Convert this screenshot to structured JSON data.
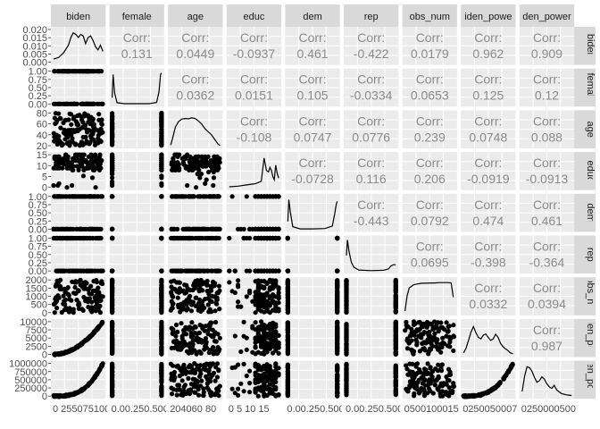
{
  "chart_data": {
    "type": "scatter-matrix",
    "variables": [
      "biden",
      "female",
      "age",
      "educ",
      "dem",
      "rep",
      "obs_num",
      "biden_power",
      "biden_power"
    ],
    "strip_labels": {
      "top": [
        "biden",
        "female",
        "age",
        "educ",
        "dem",
        "rep",
        "obs_num",
        "iden_powe",
        "den_power"
      ],
      "right": [
        "biden",
        "female",
        "age",
        "educ",
        "dem",
        "rep",
        "obs_nun",
        "den_pow",
        "en_pow"
      ]
    },
    "corr_label": "Corr:",
    "correlations": [
      [
        null,
        "0.131",
        "0.0449",
        "-0.0937",
        "0.461",
        "-0.422",
        "0.0179",
        "0.962",
        "0.909"
      ],
      [
        null,
        null,
        "0.0362",
        "0.0151",
        "0.105",
        "-0.0334",
        "0.0653",
        "0.125",
        "0.12"
      ],
      [
        null,
        null,
        null,
        "-0.108",
        "0.0747",
        "0.0776",
        "0.239",
        "0.0748",
        "0.088"
      ],
      [
        null,
        null,
        null,
        null,
        "-0.0728",
        "0.116",
        "0.206",
        "-0.0919",
        "-0.0913"
      ],
      [
        null,
        null,
        null,
        null,
        null,
        "-0.443",
        "0.0792",
        "0.474",
        "0.461"
      ],
      [
        null,
        null,
        null,
        null,
        null,
        null,
        "0.0695",
        "-0.398",
        "-0.364"
      ],
      [
        null,
        null,
        null,
        null,
        null,
        null,
        null,
        "0.0332",
        "0.0394"
      ],
      [
        null,
        null,
        null,
        null,
        null,
        null,
        null,
        null,
        "0.987"
      ],
      [
        null,
        null,
        null,
        null,
        null,
        null,
        null,
        null,
        null
      ]
    ],
    "y_tick_labels": [
      [
        "0.000",
        "0.005",
        "0.010",
        "0.015",
        "0.020"
      ],
      [
        "0.00",
        "0.25",
        "0.50",
        "0.75",
        "1.00"
      ],
      [
        "20",
        "40",
        "60",
        "80"
      ],
      [
        "0",
        "5",
        "10",
        "15"
      ],
      [
        "0.00",
        "0.25",
        "0.50",
        "0.75",
        "1.00"
      ],
      [
        "0.00",
        "0.25",
        "0.50",
        "0.75",
        "1.00"
      ],
      [
        "0",
        "500",
        "1000",
        "1500",
        "2000"
      ],
      [
        "0",
        "2500",
        "5000",
        "7500",
        "10000"
      ],
      [
        "0",
        "250000",
        "500000",
        "750000",
        "1000000"
      ]
    ],
    "x_tick_labels": [
      "0 255075100",
      "0.00.250.500.751.00",
      "204060 80",
      "0 5 10 15",
      "0.00.250.500.751.00",
      "0.00.250.500.751.00",
      "050010001500 2000",
      "02500500075001000",
      "0250000500000750000 1000000"
    ],
    "ranges": [
      [
        0,
        100
      ],
      [
        0,
        1
      ],
      [
        18,
        93
      ],
      [
        0,
        17
      ],
      [
        0,
        1
      ],
      [
        0,
        1
      ],
      [
        0,
        2300
      ],
      [
        0,
        10000
      ],
      [
        0,
        1000000
      ]
    ],
    "density_curves": [
      [
        [
          0,
          0.002
        ],
        [
          10,
          0.003
        ],
        [
          20,
          0.006
        ],
        [
          30,
          0.011
        ],
        [
          35,
          0.016
        ],
        [
          40,
          0.019
        ],
        [
          45,
          0.018
        ],
        [
          50,
          0.016
        ],
        [
          55,
          0.018
        ],
        [
          60,
          0.017
        ],
        [
          65,
          0.012
        ],
        [
          70,
          0.016
        ],
        [
          75,
          0.017
        ],
        [
          80,
          0.014
        ],
        [
          85,
          0.01
        ],
        [
          90,
          0.008
        ],
        [
          95,
          0.011
        ],
        [
          100,
          0.007
        ]
      ],
      [
        [
          0,
          0.2
        ],
        [
          0.02,
          0.95
        ],
        [
          0.05,
          0.35
        ],
        [
          0.1,
          0.04
        ],
        [
          0.25,
          0.01
        ],
        [
          0.5,
          0.01
        ],
        [
          0.75,
          0.01
        ],
        [
          0.9,
          0.05
        ],
        [
          0.95,
          0.4
        ],
        [
          0.98,
          0.95
        ],
        [
          1,
          1.0
        ]
      ],
      [
        [
          18,
          0.02
        ],
        [
          21,
          0.25
        ],
        [
          25,
          0.6
        ],
        [
          30,
          0.78
        ],
        [
          35,
          0.86
        ],
        [
          40,
          0.88
        ],
        [
          45,
          0.87
        ],
        [
          50,
          0.9
        ],
        [
          55,
          0.88
        ],
        [
          60,
          0.8
        ],
        [
          65,
          0.7
        ],
        [
          70,
          0.55
        ],
        [
          75,
          0.45
        ],
        [
          80,
          0.35
        ],
        [
          85,
          0.2
        ],
        [
          90,
          0.05
        ],
        [
          93,
          0.01
        ]
      ],
      [
        [
          0,
          0.02
        ],
        [
          3,
          0.04
        ],
        [
          6,
          0.08
        ],
        [
          9,
          0.12
        ],
        [
          11,
          0.2
        ],
        [
          12,
          0.95
        ],
        [
          12.8,
          0.55
        ],
        [
          13.5,
          0.5
        ],
        [
          14,
          0.65
        ],
        [
          14.5,
          0.55
        ],
        [
          15,
          0.35
        ],
        [
          15.5,
          0.25
        ],
        [
          16,
          0.72
        ],
        [
          16.5,
          0.45
        ],
        [
          17,
          0.3
        ]
      ],
      [
        [
          0,
          0.25
        ],
        [
          0.02,
          0.95
        ],
        [
          0.05,
          0.55
        ],
        [
          0.1,
          0.08
        ],
        [
          0.25,
          0.01
        ],
        [
          0.5,
          0.01
        ],
        [
          0.75,
          0.02
        ],
        [
          0.9,
          0.1
        ],
        [
          0.95,
          0.5
        ],
        [
          0.98,
          0.8
        ],
        [
          1,
          0.9
        ]
      ],
      [
        [
          0,
          0.5
        ],
        [
          0.02,
          1.0
        ],
        [
          0.05,
          0.65
        ],
        [
          0.1,
          0.28
        ],
        [
          0.15,
          0.12
        ],
        [
          0.25,
          0.03
        ],
        [
          0.5,
          0.01
        ],
        [
          0.75,
          0.02
        ],
        [
          0.85,
          0.06
        ],
        [
          0.9,
          0.16
        ],
        [
          0.95,
          0.2
        ],
        [
          1,
          0.2
        ]
      ],
      [
        [
          0,
          0.05
        ],
        [
          100,
          0.55
        ],
        [
          200,
          0.8
        ],
        [
          400,
          0.9
        ],
        [
          600,
          0.93
        ],
        [
          800,
          0.95
        ],
        [
          1000,
          0.95
        ],
        [
          1200,
          0.96
        ],
        [
          1400,
          0.96
        ],
        [
          1600,
          0.97
        ],
        [
          1800,
          0.97
        ],
        [
          2000,
          0.97
        ],
        [
          2150,
          0.96
        ],
        [
          2250,
          0.5
        ]
      ],
      [
        [
          0,
          0.05
        ],
        [
          500,
          0.2
        ],
        [
          1000,
          0.45
        ],
        [
          1500,
          0.72
        ],
        [
          2000,
          0.9
        ],
        [
          2500,
          0.7
        ],
        [
          3000,
          0.55
        ],
        [
          3500,
          0.5
        ],
        [
          4000,
          0.62
        ],
        [
          4500,
          0.66
        ],
        [
          5000,
          0.55
        ],
        [
          5500,
          0.45
        ],
        [
          6000,
          0.5
        ],
        [
          6500,
          0.65
        ],
        [
          7000,
          0.55
        ],
        [
          7500,
          0.35
        ],
        [
          8000,
          0.25
        ],
        [
          8500,
          0.18
        ],
        [
          9000,
          0.12
        ],
        [
          9500,
          0.05
        ],
        [
          10000,
          0.02
        ]
      ],
      [
        [
          0,
          0.15
        ],
        [
          50000,
          0.65
        ],
        [
          100000,
          0.95
        ],
        [
          150000,
          0.92
        ],
        [
          200000,
          0.8
        ],
        [
          250000,
          0.6
        ],
        [
          300000,
          0.45
        ],
        [
          350000,
          0.5
        ],
        [
          400000,
          0.62
        ],
        [
          450000,
          0.55
        ],
        [
          500000,
          0.4
        ],
        [
          550000,
          0.3
        ],
        [
          600000,
          0.25
        ],
        [
          650000,
          0.35
        ],
        [
          700000,
          0.2
        ],
        [
          800000,
          0.08
        ],
        [
          900000,
          0.04
        ],
        [
          1000000,
          0.02
        ]
      ]
    ],
    "scatter_types": [
      "continuous",
      "binary",
      "continuous",
      "discrete",
      "binary",
      "binary",
      "continuous",
      "continuous",
      "continuous"
    ],
    "background_color": "#ebebeb",
    "strip_color": "#d9d9d9",
    "point_color": "#000000"
  }
}
